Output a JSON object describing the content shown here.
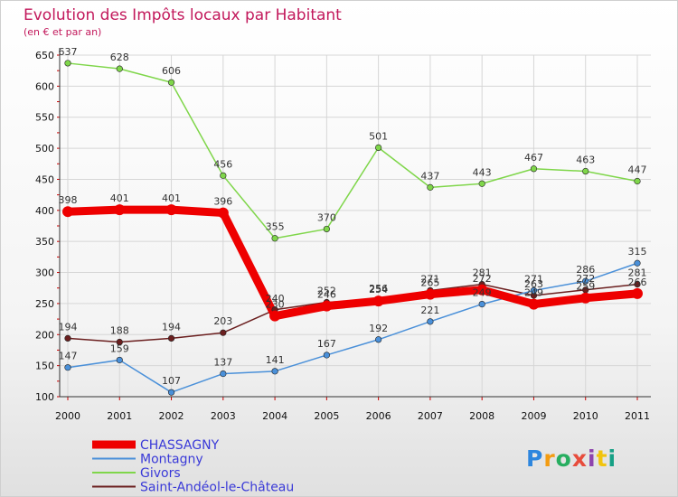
{
  "chart_data": {
    "type": "line",
    "title": "Evolution des Impôts locaux par Habitant",
    "subtitle": "(en € et par an)",
    "xlabel": "",
    "ylabel": "",
    "ylim": [
      100,
      650
    ],
    "yticks": [
      100,
      150,
      200,
      250,
      300,
      350,
      400,
      450,
      500,
      550,
      600,
      650
    ],
    "categories": [
      "2000",
      "2001",
      "2002",
      "2003",
      "2004",
      "2005",
      "2006",
      "2007",
      "2008",
      "2009",
      "2010",
      "2011"
    ],
    "series": [
      {
        "name": "CHASSAGNY",
        "color": "#ee0000",
        "values": [
          398,
          401,
          401,
          396,
          230,
          246,
          254,
          265,
          272,
          249,
          259,
          266
        ]
      },
      {
        "name": "Montagny",
        "color": "#4a90d9",
        "values": [
          147,
          159,
          107,
          137,
          141,
          167,
          192,
          221,
          249,
          271,
          286,
          315
        ]
      },
      {
        "name": "Givors",
        "color": "#7fd64a",
        "values": [
          637,
          628,
          606,
          456,
          355,
          370,
          501,
          437,
          443,
          467,
          463,
          447
        ]
      },
      {
        "name": "Saint-Andéol-le-Château",
        "color": "#6b1f1f",
        "values": [
          194,
          188,
          194,
          203,
          240,
          252,
          256,
          271,
          281,
          263,
          272,
          281
        ]
      }
    ],
    "legend_position": "bottom-left"
  },
  "brand": {
    "letters": [
      "P",
      "r",
      "o",
      "x",
      "i",
      "t",
      "i"
    ]
  }
}
